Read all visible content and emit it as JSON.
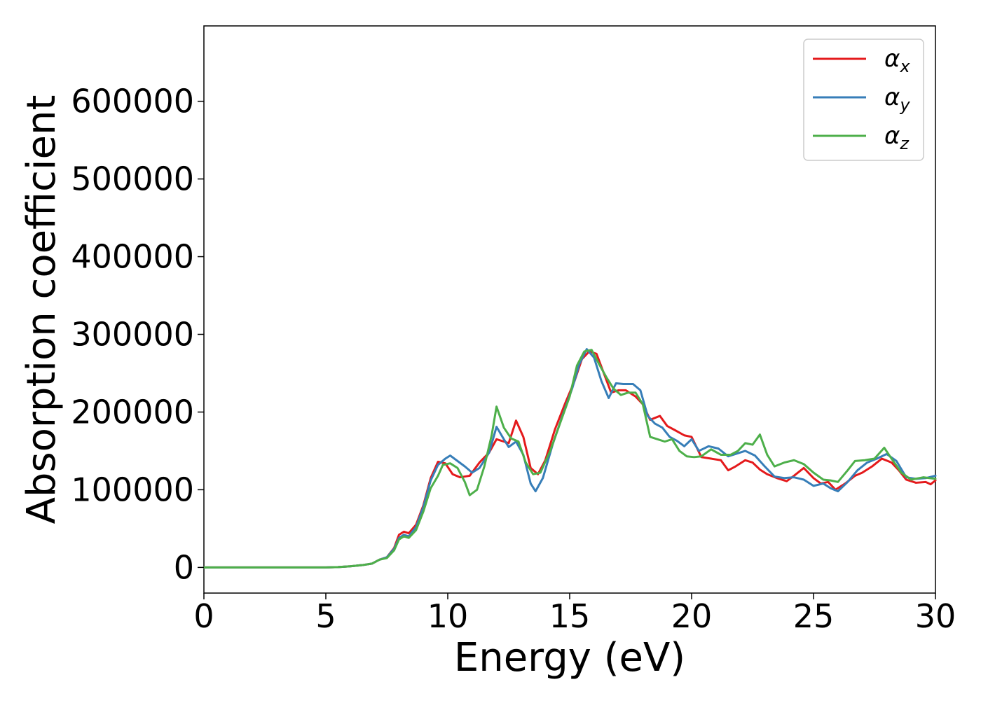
{
  "chart_data": {
    "type": "line",
    "title": "",
    "xlabel": "Energy (eV)",
    "ylabel": "Absorption coefficient",
    "xlim": [
      0,
      30
    ],
    "ylim": [
      -33000,
      697000
    ],
    "xticks": [
      0,
      5,
      10,
      15,
      20,
      25,
      30
    ],
    "xtick_labels": [
      "0",
      "5",
      "10",
      "15",
      "20",
      "25",
      "30"
    ],
    "yticks": [
      0,
      100000,
      200000,
      300000,
      400000,
      500000,
      600000
    ],
    "ytick_labels": [
      "0",
      "100000",
      "200000",
      "300000",
      "400000",
      "500000",
      "600000"
    ],
    "grid": false,
    "legend_position": "top-right",
    "series": [
      {
        "name": "αx",
        "name_main": "α",
        "name_sub": "x",
        "color": "#e41a1c",
        "points": [
          [
            0,
            0
          ],
          [
            1,
            0
          ],
          [
            2,
            0
          ],
          [
            3,
            0
          ],
          [
            4,
            0
          ],
          [
            5,
            0
          ],
          [
            5.5,
            500
          ],
          [
            6,
            1500
          ],
          [
            6.5,
            3000
          ],
          [
            6.9,
            5000
          ],
          [
            7.2,
            10000
          ],
          [
            7.5,
            13000
          ],
          [
            7.8,
            25000
          ],
          [
            8.0,
            42000
          ],
          [
            8.2,
            46000
          ],
          [
            8.4,
            44000
          ],
          [
            8.7,
            55000
          ],
          [
            9.0,
            80000
          ],
          [
            9.3,
            115000
          ],
          [
            9.6,
            136000
          ],
          [
            9.9,
            134000
          ],
          [
            10.2,
            120000
          ],
          [
            10.5,
            116000
          ],
          [
            10.9,
            118000
          ],
          [
            11.3,
            135000
          ],
          [
            11.7,
            148000
          ],
          [
            12.0,
            165000
          ],
          [
            12.3,
            162000
          ],
          [
            12.5,
            160000
          ],
          [
            12.8,
            189000
          ],
          [
            13.1,
            168000
          ],
          [
            13.4,
            128000
          ],
          [
            13.7,
            120000
          ],
          [
            14.0,
            138000
          ],
          [
            14.4,
            178000
          ],
          [
            14.8,
            210000
          ],
          [
            15.2,
            240000
          ],
          [
            15.5,
            268000
          ],
          [
            15.8,
            278000
          ],
          [
            16.1,
            275000
          ],
          [
            16.4,
            250000
          ],
          [
            16.7,
            225000
          ],
          [
            17.0,
            228000
          ],
          [
            17.3,
            228000
          ],
          [
            17.7,
            220000
          ],
          [
            18.0,
            210000
          ],
          [
            18.3,
            190000
          ],
          [
            18.7,
            195000
          ],
          [
            19.0,
            182000
          ],
          [
            19.3,
            177000
          ],
          [
            19.7,
            170000
          ],
          [
            20.0,
            168000
          ],
          [
            20.4,
            142000
          ],
          [
            20.8,
            140000
          ],
          [
            21.2,
            138000
          ],
          [
            21.5,
            125000
          ],
          [
            21.8,
            130000
          ],
          [
            22.2,
            138000
          ],
          [
            22.5,
            135000
          ],
          [
            22.8,
            126000
          ],
          [
            23.1,
            120000
          ],
          [
            23.5,
            115000
          ],
          [
            23.9,
            111000
          ],
          [
            24.2,
            118000
          ],
          [
            24.6,
            128000
          ],
          [
            25.0,
            115000
          ],
          [
            25.3,
            108000
          ],
          [
            25.6,
            110000
          ],
          [
            25.9,
            100000
          ],
          [
            26.3,
            108000
          ],
          [
            26.7,
            118000
          ],
          [
            27.0,
            122000
          ],
          [
            27.4,
            130000
          ],
          [
            27.8,
            140000
          ],
          [
            28.2,
            135000
          ],
          [
            28.5,
            125000
          ],
          [
            28.8,
            113000
          ],
          [
            29.2,
            109000
          ],
          [
            29.6,
            110000
          ],
          [
            29.8,
            107000
          ],
          [
            30,
            112000
          ]
        ]
      },
      {
        "name": "αy",
        "name_main": "α",
        "name_sub": "y",
        "color": "#377eb8",
        "points": [
          [
            0,
            0
          ],
          [
            1,
            0
          ],
          [
            2,
            0
          ],
          [
            3,
            0
          ],
          [
            4,
            0
          ],
          [
            5,
            0
          ],
          [
            5.5,
            500
          ],
          [
            6,
            1500
          ],
          [
            6.5,
            3000
          ],
          [
            6.9,
            5000
          ],
          [
            7.2,
            10000
          ],
          [
            7.5,
            13000
          ],
          [
            7.8,
            24000
          ],
          [
            8.0,
            38000
          ],
          [
            8.2,
            42000
          ],
          [
            8.4,
            40000
          ],
          [
            8.7,
            52000
          ],
          [
            9.0,
            78000
          ],
          [
            9.3,
            112000
          ],
          [
            9.6,
            132000
          ],
          [
            9.9,
            140000
          ],
          [
            10.1,
            144000
          ],
          [
            10.4,
            137000
          ],
          [
            10.7,
            130000
          ],
          [
            11.0,
            122000
          ],
          [
            11.3,
            128000
          ],
          [
            11.7,
            148000
          ],
          [
            12.0,
            181000
          ],
          [
            12.3,
            165000
          ],
          [
            12.5,
            155000
          ],
          [
            12.8,
            162000
          ],
          [
            13.1,
            145000
          ],
          [
            13.4,
            108000
          ],
          [
            13.6,
            98000
          ],
          [
            13.9,
            115000
          ],
          [
            14.3,
            158000
          ],
          [
            14.7,
            195000
          ],
          [
            15.1,
            230000
          ],
          [
            15.4,
            262000
          ],
          [
            15.7,
            281000
          ],
          [
            16.0,
            270000
          ],
          [
            16.3,
            240000
          ],
          [
            16.6,
            218000
          ],
          [
            16.9,
            237000
          ],
          [
            17.2,
            236000
          ],
          [
            17.6,
            236000
          ],
          [
            17.9,
            228000
          ],
          [
            18.2,
            195000
          ],
          [
            18.5,
            185000
          ],
          [
            18.8,
            180000
          ],
          [
            19.1,
            168000
          ],
          [
            19.4,
            163000
          ],
          [
            19.7,
            156000
          ],
          [
            20.0,
            165000
          ],
          [
            20.3,
            150000
          ],
          [
            20.7,
            156000
          ],
          [
            21.1,
            153000
          ],
          [
            21.5,
            143000
          ],
          [
            21.9,
            147000
          ],
          [
            22.2,
            150000
          ],
          [
            22.6,
            144000
          ],
          [
            23.0,
            130000
          ],
          [
            23.4,
            117000
          ],
          [
            23.8,
            115000
          ],
          [
            24.2,
            116000
          ],
          [
            24.6,
            113000
          ],
          [
            25.0,
            105000
          ],
          [
            25.4,
            108000
          ],
          [
            25.7,
            102000
          ],
          [
            26.0,
            98000
          ],
          [
            26.4,
            110000
          ],
          [
            26.8,
            125000
          ],
          [
            27.2,
            135000
          ],
          [
            27.6,
            140000
          ],
          [
            28.0,
            146000
          ],
          [
            28.4,
            137000
          ],
          [
            28.8,
            116000
          ],
          [
            29.2,
            114000
          ],
          [
            29.6,
            115000
          ],
          [
            30,
            118000
          ]
        ]
      },
      {
        "name": "αz",
        "name_main": "α",
        "name_sub": "z",
        "color": "#4daf4a",
        "points": [
          [
            0,
            0
          ],
          [
            1,
            0
          ],
          [
            2,
            0
          ],
          [
            3,
            0
          ],
          [
            4,
            0
          ],
          [
            5,
            0
          ],
          [
            5.5,
            500
          ],
          [
            6,
            1500
          ],
          [
            6.5,
            3000
          ],
          [
            6.9,
            5000
          ],
          [
            7.2,
            10000
          ],
          [
            7.5,
            12000
          ],
          [
            7.8,
            22000
          ],
          [
            8.0,
            36000
          ],
          [
            8.2,
            40000
          ],
          [
            8.4,
            38000
          ],
          [
            8.7,
            48000
          ],
          [
            9.0,
            72000
          ],
          [
            9.3,
            102000
          ],
          [
            9.6,
            118000
          ],
          [
            9.8,
            132000
          ],
          [
            10.1,
            134000
          ],
          [
            10.4,
            128000
          ],
          [
            10.7,
            110000
          ],
          [
            10.9,
            93000
          ],
          [
            11.2,
            100000
          ],
          [
            11.5,
            130000
          ],
          [
            11.8,
            170000
          ],
          [
            12.0,
            207000
          ],
          [
            12.3,
            180000
          ],
          [
            12.6,
            166000
          ],
          [
            12.9,
            162000
          ],
          [
            13.2,
            135000
          ],
          [
            13.5,
            120000
          ],
          [
            13.8,
            122000
          ],
          [
            14.2,
            150000
          ],
          [
            14.6,
            185000
          ],
          [
            15.0,
            220000
          ],
          [
            15.3,
            260000
          ],
          [
            15.6,
            278000
          ],
          [
            15.9,
            280000
          ],
          [
            16.2,
            262000
          ],
          [
            16.5,
            245000
          ],
          [
            16.8,
            230000
          ],
          [
            17.1,
            222000
          ],
          [
            17.4,
            225000
          ],
          [
            17.7,
            225000
          ],
          [
            18.0,
            210000
          ],
          [
            18.3,
            168000
          ],
          [
            18.6,
            165000
          ],
          [
            18.9,
            162000
          ],
          [
            19.2,
            165000
          ],
          [
            19.5,
            150000
          ],
          [
            19.8,
            143000
          ],
          [
            20.1,
            142000
          ],
          [
            20.4,
            143000
          ],
          [
            20.8,
            152000
          ],
          [
            21.2,
            145000
          ],
          [
            21.6,
            145000
          ],
          [
            21.9,
            150000
          ],
          [
            22.2,
            160000
          ],
          [
            22.5,
            158000
          ],
          [
            22.8,
            171000
          ],
          [
            23.1,
            145000
          ],
          [
            23.4,
            130000
          ],
          [
            23.8,
            135000
          ],
          [
            24.2,
            138000
          ],
          [
            24.6,
            133000
          ],
          [
            25.0,
            122000
          ],
          [
            25.4,
            113000
          ],
          [
            25.7,
            112000
          ],
          [
            26.0,
            110000
          ],
          [
            26.4,
            125000
          ],
          [
            26.7,
            137000
          ],
          [
            27.1,
            138000
          ],
          [
            27.5,
            140000
          ],
          [
            27.9,
            154000
          ],
          [
            28.2,
            140000
          ],
          [
            28.6,
            122000
          ],
          [
            29.0,
            113000
          ],
          [
            29.5,
            116000
          ],
          [
            30,
            114000
          ]
        ]
      }
    ]
  }
}
